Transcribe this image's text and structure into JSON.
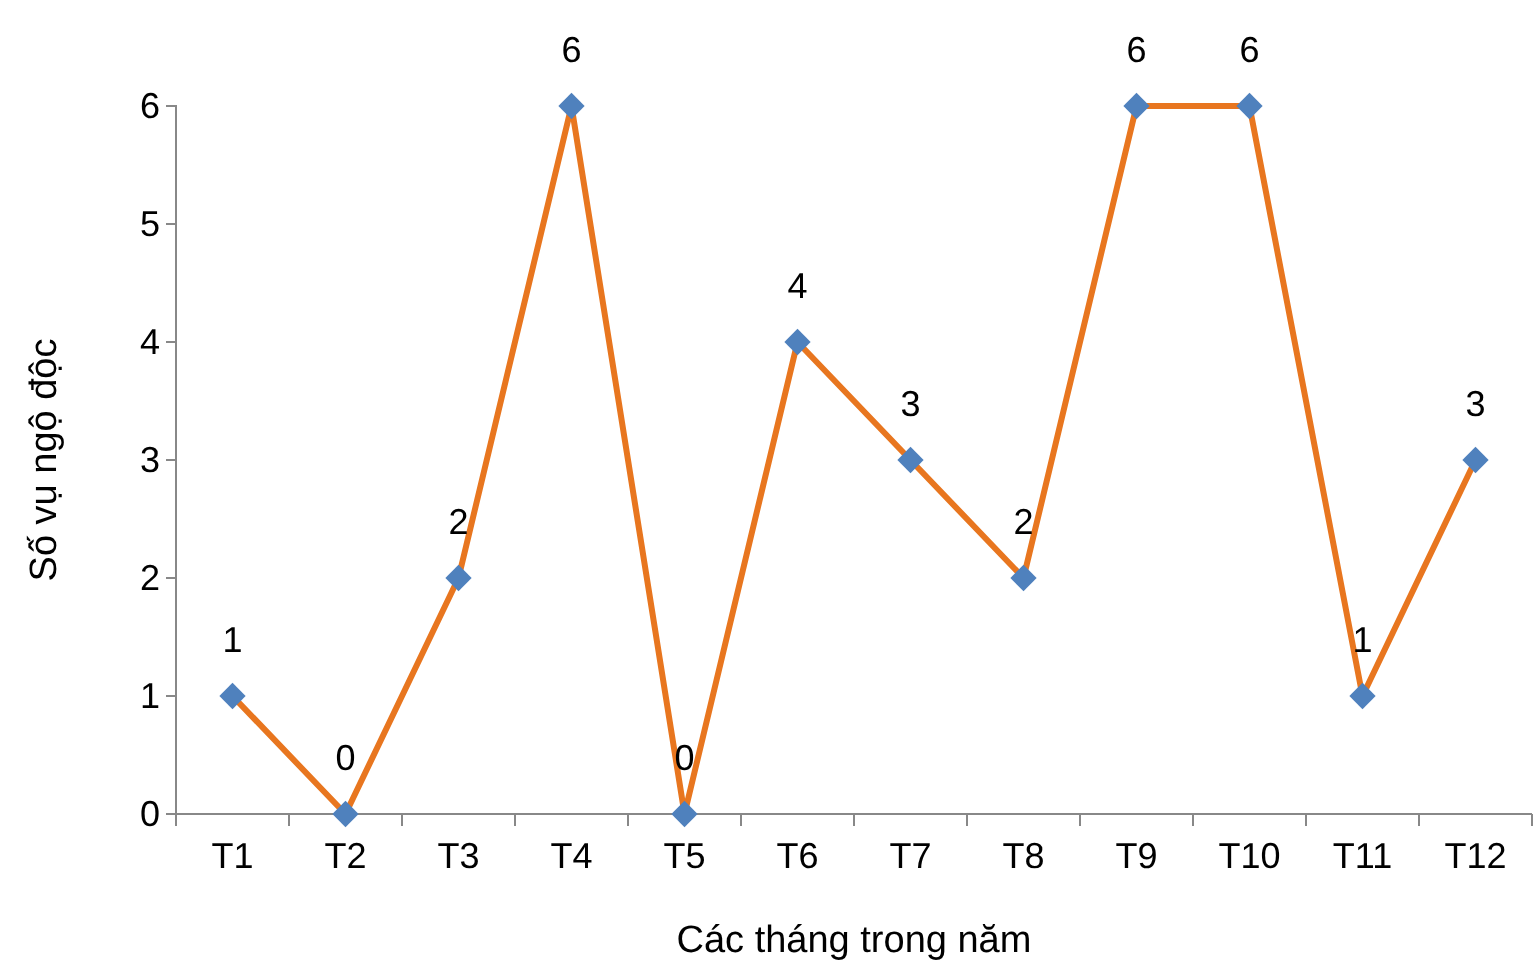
{
  "chart_data": {
    "type": "line",
    "xlabel": "Các tháng trong năm",
    "ylabel": "Số vụ ngộ độc",
    "categories": [
      "T1",
      "T2",
      "T3",
      "T4",
      "T5",
      "T6",
      "T7",
      "T8",
      "T9",
      "T10",
      "T11",
      "T12"
    ],
    "series": [
      {
        "color": "#e8761f",
        "colors": [
          "#4f81bd",
          "#4f81bd",
          "#4f81bd",
          "#4f81bd",
          "#4f81bd",
          "#4f81bd",
          "#4f81bd",
          "#4f81bd",
          "#4f81bd",
          "#4f81bd",
          "#4f81bd",
          "#4f81bd"
        ],
        "values": [
          1,
          0,
          2,
          6,
          0,
          4,
          3,
          2,
          6,
          6,
          1,
          3
        ]
      }
    ],
    "ylim": [
      0,
      6
    ],
    "yticks": [
      0,
      1,
      2,
      3,
      4,
      5,
      6
    ],
    "grid": false,
    "marker": "diamond",
    "data_labels": true
  }
}
